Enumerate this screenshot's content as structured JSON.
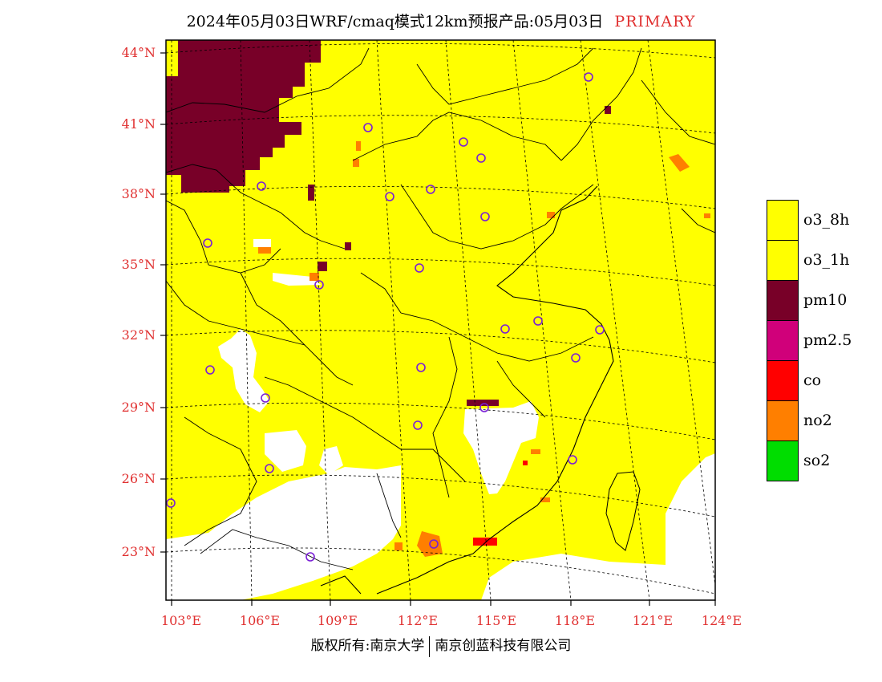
{
  "title": {
    "main": "2024年05月03日WRF/cmaq模式12km预报产品:05月03日",
    "tag": "PRIMARY"
  },
  "colors": {
    "label_red": "#e03030",
    "background_yellow": "#ffff00",
    "pm10": "#780028",
    "pm25": "#d0007a",
    "co": "#ff0000",
    "no2": "#ff7f00",
    "so2": "#00dd00",
    "site_marker": "#7a1fd6"
  },
  "axes": {
    "latitudes": [
      "44°N",
      "41°N",
      "38°N",
      "35°N",
      "32°N",
      "29°N",
      "26°N",
      "23°N"
    ],
    "longitudes": [
      "103°E",
      "106°E",
      "109°E",
      "112°E",
      "115°E",
      "118°E",
      "121°E",
      "124°E"
    ]
  },
  "legend": [
    {
      "label": "o3_8h",
      "color": "#ffff00"
    },
    {
      "label": "o3_1h",
      "color": "#ffff00"
    },
    {
      "label": "pm10",
      "color": "#780028"
    },
    {
      "label": "pm2.5",
      "color": "#d0007a"
    },
    {
      "label": "co",
      "color": "#ff0000"
    },
    {
      "label": "no2",
      "color": "#ff7f00"
    },
    {
      "label": "so2",
      "color": "#00dd00"
    }
  ],
  "copyright": {
    "left": "版权所有:南京大学",
    "right": "南京创蓝科技有限公司"
  }
}
